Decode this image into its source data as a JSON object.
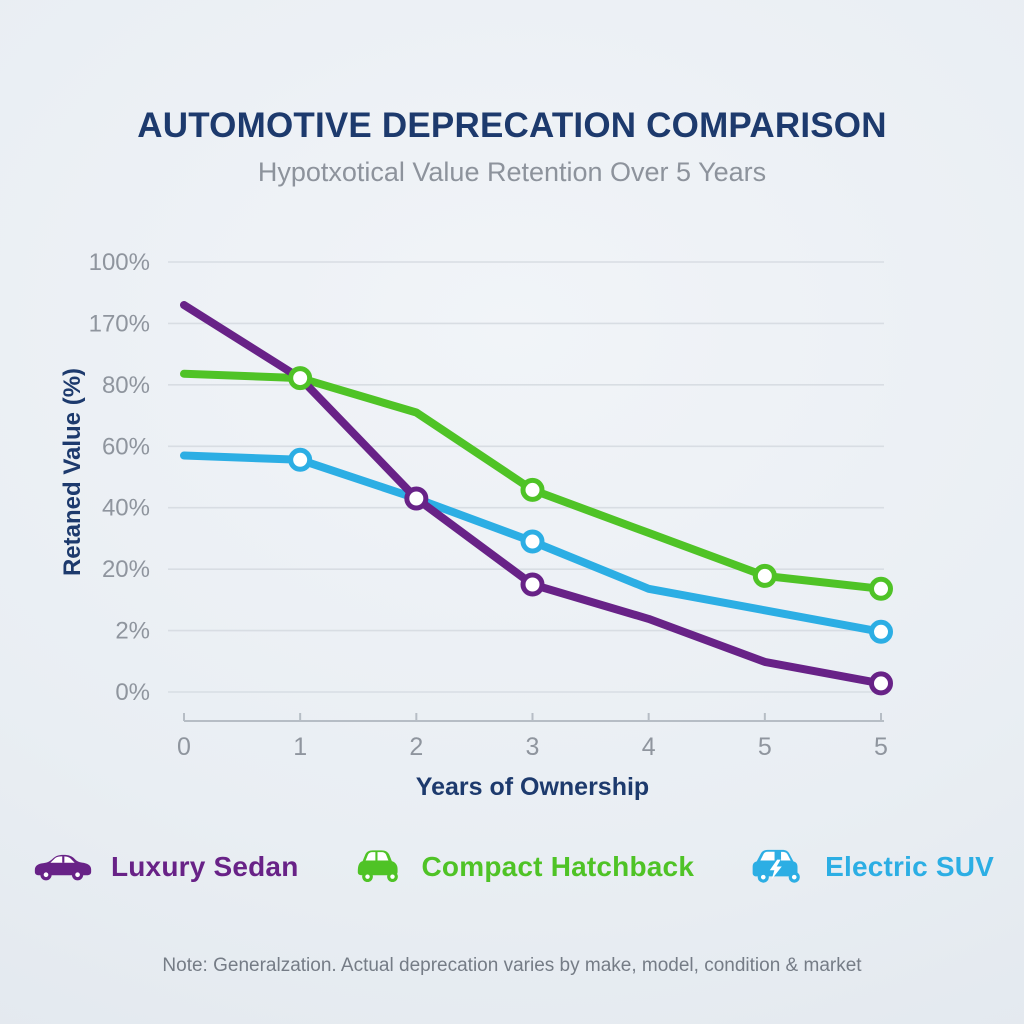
{
  "note": "Note: Generalzation. Actual deprecation varies by make, model, condition & market",
  "chart_data": {
    "type": "line",
    "title": "AUTOMOTIVE DEPRECATION COMPARISON",
    "subtitle": "Hypotxotical Value Retention Over 5 Years",
    "xlabel": "Years of Ownership",
    "ylabel": "Retaned Value (%)",
    "xtick_labels": [
      "0",
      "1",
      "2",
      "3",
      "4",
      "5",
      "5"
    ],
    "ytick_labels": [
      "100%",
      "170%",
      "80%",
      "60%",
      "40%",
      "20%",
      "2%",
      "0%"
    ],
    "ylim": [
      0,
      100
    ],
    "grid": true,
    "legend_position": "bottom",
    "series": [
      {
        "name": "Luxury Sedan",
        "color": "#682287",
        "icon": "sedan-car-icon",
        "values": [
          90,
          73,
          45,
          25,
          17,
          7,
          2
        ],
        "marker_indices": [
          2,
          3,
          6
        ]
      },
      {
        "name": "Compact Hatchback",
        "color": "#4fc326",
        "icon": "hatchback-car-icon",
        "values": [
          74,
          73,
          65,
          47,
          37,
          27,
          24
        ],
        "marker_indices": [
          1,
          3,
          5,
          6
        ]
      },
      {
        "name": "Electric SUV",
        "color": "#2caee4",
        "icon": "electric-suv-car-icon",
        "values": [
          55,
          54,
          45,
          35,
          24,
          19,
          14
        ],
        "marker_indices": [
          1,
          3,
          6
        ]
      }
    ],
    "style": {
      "title_color": "#1d3a6d",
      "subtitle_color": "#8d939c",
      "tick_label_color": "#8f959e",
      "axis_title_color": "#1d3a6d",
      "gridline_color": "#d8dde3",
      "axis_line_color": "#b6bdc5",
      "note_color": "#757c86",
      "marker_fill": "#ffffff"
    }
  }
}
